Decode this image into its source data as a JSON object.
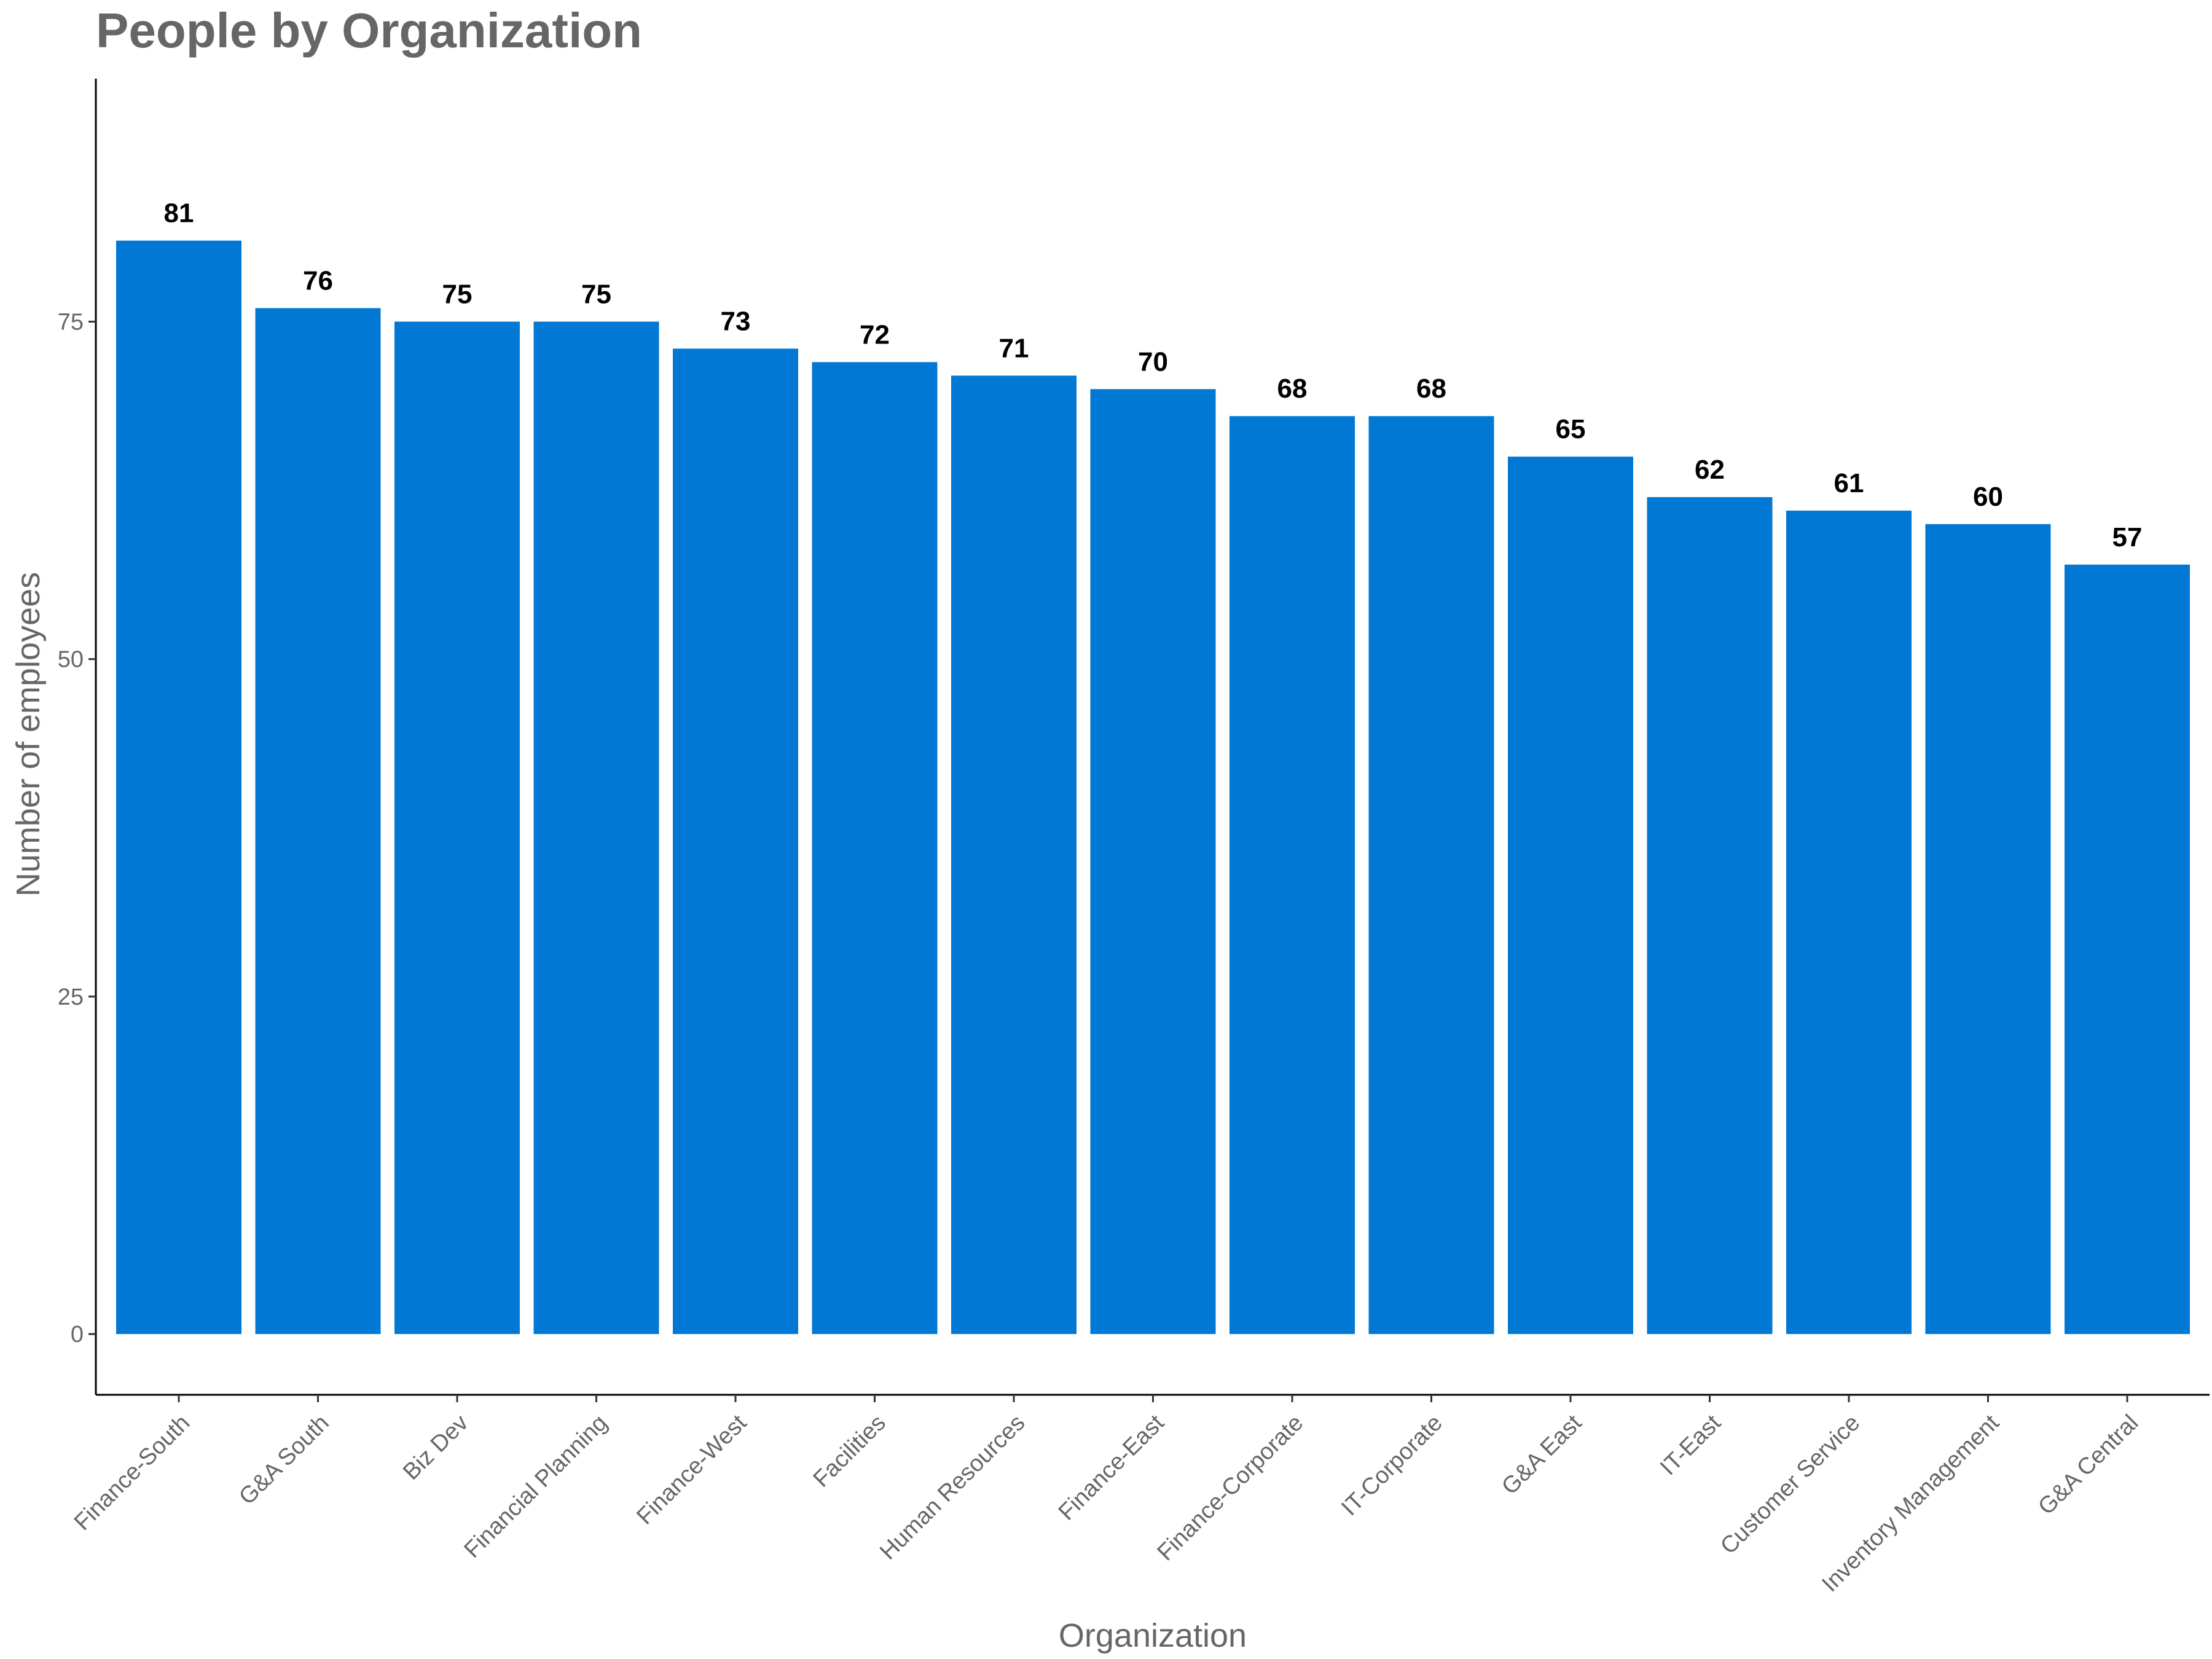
{
  "chart_data": {
    "type": "bar",
    "title": "People by Organization",
    "xlabel": "Organization",
    "ylabel": "Number of employees",
    "categories": [
      "Finance-South",
      "G&A South",
      "Biz Dev",
      "Financial Planning",
      "Finance-West",
      "Facilities",
      "Human Resources",
      "Finance-East",
      "Finance-Corporate",
      "IT-Corporate",
      "G&A East",
      "IT-East",
      "Customer Service",
      "Inventory Management",
      "G&A Central"
    ],
    "values": [
      81,
      76,
      75,
      75,
      73,
      72,
      71,
      70,
      68,
      68,
      65,
      62,
      61,
      60,
      57
    ],
    "yticks": [
      0,
      25,
      50,
      75
    ],
    "ylim": [
      -4.5,
      93
    ],
    "bar_color": "#0078D4",
    "grid": false,
    "legend": "none",
    "data_labels": true
  }
}
